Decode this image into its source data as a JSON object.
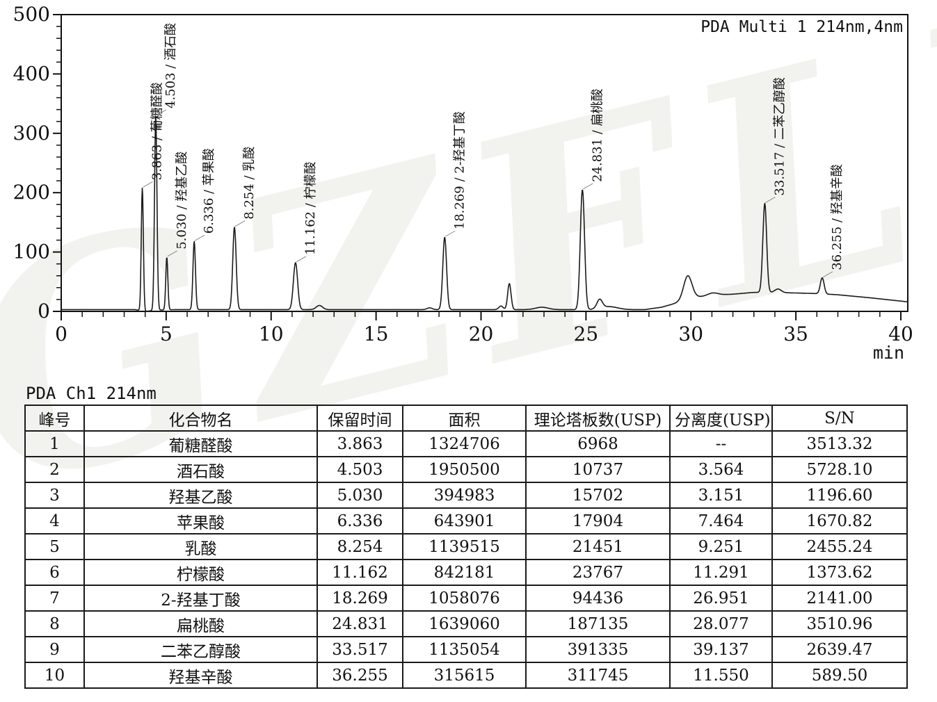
{
  "watermark": "GZFLM",
  "chart": {
    "detector_label": "PDA Multi 1 214nm,4nm",
    "x_axis": {
      "unit": "min",
      "min": 0,
      "max": 40,
      "major_tick": 5,
      "minor_tick": 1
    },
    "y_axis": {
      "min": 0,
      "max": 500,
      "major_tick": 100,
      "minor_tick": 20
    }
  },
  "chart_data": {
    "type": "line",
    "title": "PDA Multi 1 214nm,4nm",
    "xlabel": "min",
    "ylabel": "",
    "xlim": [
      0,
      40
    ],
    "ylim": [
      0,
      500
    ],
    "grid": false,
    "peaks": [
      {
        "rt": 3.863,
        "name": "葡糖醛酸",
        "label": "3.863 / 葡糖醛酸",
        "amplitude": 207,
        "sigma": 0.05
      },
      {
        "rt": 4.503,
        "name": "酒石酸",
        "label": "4.503 / 酒石酸",
        "amplitude": 327,
        "sigma": 0.058
      },
      {
        "rt": 5.03,
        "name": "羟基乙酸",
        "label": "5.030 / 羟基乙酸",
        "amplitude": 89,
        "sigma": 0.05
      },
      {
        "rt": 6.336,
        "name": "苹果酸",
        "label": "6.336 / 苹果酸",
        "amplitude": 115,
        "sigma": 0.06
      },
      {
        "rt": 8.254,
        "name": "乳酸",
        "label": "8.254 / 乳酸",
        "amplitude": 139,
        "sigma": 0.08
      },
      {
        "rt": 11.162,
        "name": "柠檬酸",
        "label": "11.162 / 柠檬酸",
        "amplitude": 79,
        "sigma": 0.1
      },
      {
        "rt": 18.269,
        "name": "2-羟基丁酸",
        "label": "18.269 / 2-羟基丁酸",
        "amplitude": 122,
        "sigma": 0.09
      },
      {
        "rt": 24.831,
        "name": "扁桃酸",
        "label": "24.831 / 扁桃酸",
        "amplitude": 202,
        "sigma": 0.1
      },
      {
        "rt": 33.517,
        "name": "二苯乙醇酸",
        "label": "33.517 / 二苯乙醇酸",
        "amplitude": 150,
        "sigma": 0.09
      },
      {
        "rt": 36.255,
        "name": "羟基辛酸",
        "label": "36.255 / 羟基辛酸",
        "amplitude": 27,
        "sigma": 0.09
      }
    ],
    "unlabeled_peaks": [
      {
        "rt": 12.3,
        "amplitude": 7,
        "sigma": 0.15
      },
      {
        "rt": 17.55,
        "amplitude": 3,
        "sigma": 0.12
      },
      {
        "rt": 20.95,
        "amplitude": 6,
        "sigma": 0.1
      },
      {
        "rt": 21.35,
        "amplitude": 44,
        "sigma": 0.08
      },
      {
        "rt": 22.9,
        "amplitude": 4,
        "sigma": 0.3
      },
      {
        "rt": 25.65,
        "amplitude": 15,
        "sigma": 0.13
      },
      {
        "rt": 26.1,
        "amplitude": 5,
        "sigma": 0.4
      },
      {
        "rt": 29.85,
        "amplitude": 40,
        "sigma": 0.2
      },
      {
        "rt": 31.05,
        "amplitude": 4,
        "sigma": 0.25
      },
      {
        "rt": 34.15,
        "amplitude": 6,
        "sigma": 0.15
      }
    ],
    "baseline_points": [
      [
        0,
        3
      ],
      [
        3.5,
        3
      ],
      [
        4.05,
        0
      ],
      [
        4.45,
        2
      ],
      [
        5.4,
        3
      ],
      [
        27.8,
        3
      ],
      [
        28.6,
        7
      ],
      [
        29.3,
        14
      ],
      [
        29.85,
        20
      ],
      [
        30.3,
        24
      ],
      [
        31,
        27
      ],
      [
        32,
        29
      ],
      [
        33,
        32
      ],
      [
        33.8,
        32
      ],
      [
        35,
        31
      ],
      [
        36,
        30
      ],
      [
        37,
        28
      ],
      [
        38.5,
        23
      ],
      [
        40.35,
        16
      ]
    ]
  },
  "table": {
    "title": "PDA Ch1 214nm",
    "columns": [
      "峰号",
      "化合物名",
      "保留时间",
      "面积",
      "理论塔板数(USP)",
      "分离度(USP)",
      "S/N"
    ],
    "rows": [
      [
        "1",
        "葡糖醛酸",
        "3.863",
        "1324706",
        "6968",
        "--",
        "3513.32"
      ],
      [
        "2",
        "酒石酸",
        "4.503",
        "1950500",
        "10737",
        "3.564",
        "5728.10"
      ],
      [
        "3",
        "羟基乙酸",
        "5.030",
        "394983",
        "15702",
        "3.151",
        "1196.60"
      ],
      [
        "4",
        "苹果酸",
        "6.336",
        "643901",
        "17904",
        "7.464",
        "1670.82"
      ],
      [
        "5",
        "乳酸",
        "8.254",
        "1139515",
        "21451",
        "9.251",
        "2455.24"
      ],
      [
        "6",
        "柠檬酸",
        "11.162",
        "842181",
        "23767",
        "11.291",
        "1373.62"
      ],
      [
        "7",
        "2-羟基丁酸",
        "18.269",
        "1058076",
        "94436",
        "26.951",
        "2141.00"
      ],
      [
        "8",
        "扁桃酸",
        "24.831",
        "1639060",
        "187135",
        "28.077",
        "3510.96"
      ],
      [
        "9",
        "二苯乙醇酸",
        "33.517",
        "1135054",
        "391335",
        "39.137",
        "2639.47"
      ],
      [
        "10",
        "羟基辛酸",
        "36.255",
        "315615",
        "311745",
        "11.550",
        "589.50"
      ]
    ]
  }
}
